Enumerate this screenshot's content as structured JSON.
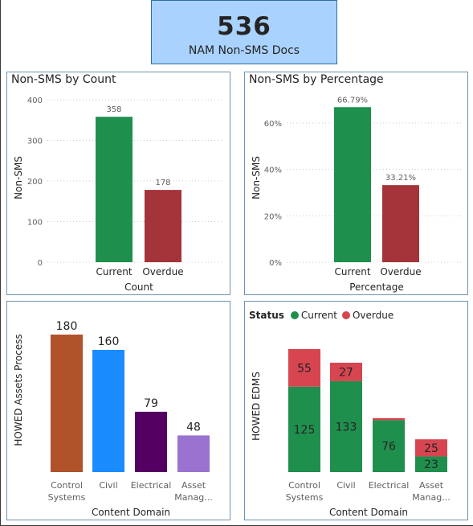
{
  "kpi": {
    "value": "536",
    "label": "NAM Non-SMS Docs"
  },
  "colors": {
    "current": "#1f8f4e",
    "overdue": "#a4343a",
    "overdue_legend": "#d64550"
  },
  "chart_data": [
    {
      "id": "count",
      "type": "bar",
      "title": "Non-SMS by Count",
      "xlabel": "Count",
      "ylabel": "Non-SMS",
      "categories": [
        "Current",
        "Overdue"
      ],
      "values": [
        358,
        178
      ],
      "data_labels": [
        "358",
        "178"
      ],
      "ylim": [
        0,
        400
      ],
      "yticks": [
        0,
        100,
        200,
        300,
        400
      ],
      "ytick_labels": [
        "0",
        "100",
        "200",
        "300",
        "400"
      ],
      "colors": [
        "#1f8f4e",
        "#a4343a"
      ],
      "grid": true
    },
    {
      "id": "percentage",
      "type": "bar",
      "title": "Non-SMS by Percentage",
      "xlabel": "Percentage",
      "ylabel": "Non-SMS",
      "categories": [
        "Current",
        "Overdue"
      ],
      "values": [
        66.79,
        33.21
      ],
      "data_labels": [
        "66.79%",
        "33.21%"
      ],
      "ylim": [
        0,
        70
      ],
      "yticks": [
        0,
        20,
        40,
        60
      ],
      "ytick_labels": [
        "0%",
        "20%",
        "40%",
        "60%"
      ],
      "colors": [
        "#1f8f4e",
        "#a4343a"
      ],
      "grid": true
    },
    {
      "id": "assets",
      "type": "bar",
      "title": "",
      "xlabel": "Content Domain",
      "ylabel": "HOWED Assets Process",
      "categories": [
        [
          "Control",
          "Systems"
        ],
        [
          "Civil"
        ],
        [
          "Electrical"
        ],
        [
          "Asset",
          "Manag..."
        ]
      ],
      "values": [
        180,
        160,
        79,
        48
      ],
      "data_labels": [
        "180",
        "160",
        "79",
        "48"
      ],
      "ylim": [
        0,
        200
      ],
      "colors": [
        "#b0522a",
        "#1a8cff",
        "#540062",
        "#9a73d1"
      ],
      "grid": false
    },
    {
      "id": "edms",
      "type": "bar",
      "stacked": true,
      "title": "",
      "xlabel": "Content Domain",
      "ylabel": "HOWED EDMS",
      "legend": {
        "title": "Status",
        "position": "top-left",
        "entries": [
          "Current",
          "Overdue"
        ]
      },
      "categories": [
        [
          "Control",
          "Systems"
        ],
        [
          "Civil"
        ],
        [
          "Electrical"
        ],
        [
          "Asset",
          "Manag..."
        ]
      ],
      "series": [
        {
          "name": "Current",
          "values": [
            125,
            133,
            76,
            23
          ],
          "labels": [
            "125",
            "133",
            "76",
            "23"
          ],
          "color": "#1f8f4e"
        },
        {
          "name": "Overdue",
          "values": [
            55,
            27,
            3,
            25
          ],
          "labels": [
            "55",
            "27",
            "",
            "25"
          ],
          "color": "#d64550"
        }
      ],
      "ylim": [
        0,
        190
      ],
      "grid": false
    }
  ]
}
